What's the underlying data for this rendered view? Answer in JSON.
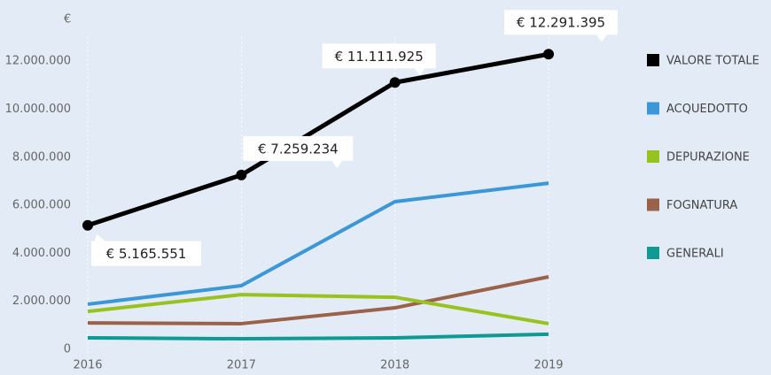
{
  "chart_data": {
    "type": "line",
    "y_unit": "€",
    "categories": [
      "2016",
      "2017",
      "2018",
      "2019"
    ],
    "series": [
      {
        "name": "VALORE TOTALE",
        "color": "#000000",
        "values": [
          5165551,
          7259234,
          11111925,
          12291395
        ],
        "value_labels": [
          "€ 5.165.551",
          "€ 7.259.234",
          "€ 11.111.925",
          "€ 12.291.395"
        ]
      },
      {
        "name": "ACQUEDOTTO",
        "color": "#3b97d8",
        "values": [
          1880000,
          2650000,
          6150000,
          6920000
        ]
      },
      {
        "name": "DEPURAZIONE",
        "color": "#98c21e",
        "values": [
          1580000,
          2280000,
          2170000,
          1070000
        ]
      },
      {
        "name": "FOGNATURA",
        "color": "#9b624a",
        "values": [
          1100000,
          1070000,
          1730000,
          3020000
        ]
      },
      {
        "name": "GENERALI",
        "color": "#0f9a94",
        "values": [
          480000,
          440000,
          480000,
          630000
        ]
      }
    ],
    "ylim": [
      0,
      13000000
    ],
    "yticks": [
      0,
      {
        "value": 2000000,
        "label": "2.000.000"
      },
      {
        "value": 4000000,
        "label": "4.000.000"
      },
      {
        "value": 6000000,
        "label": "6.000.000"
      },
      {
        "value": 8000000,
        "label": "8.000.000"
      },
      {
        "value": 10000000,
        "label": "10.000.000"
      },
      {
        "value": 12000000,
        "label": "12.000.000"
      }
    ],
    "grid": true,
    "legend": "right"
  }
}
